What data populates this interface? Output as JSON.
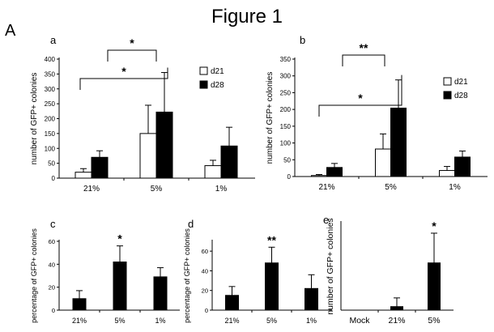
{
  "figure_title": "Figure 1",
  "section_label": "A",
  "colors": {
    "d21": "#ffffff",
    "d28": "#000000",
    "axis": "#000000"
  },
  "chart_data": [
    {
      "panel": "a",
      "type": "bar",
      "categories": [
        "21%",
        "5%",
        "1%"
      ],
      "series": [
        {
          "name": "d21",
          "values": [
            20,
            150,
            42
          ],
          "errors": [
            12,
            95,
            18
          ]
        },
        {
          "name": "d28",
          "values": [
            70,
            222,
            108
          ],
          "errors": [
            22,
            133,
            63
          ]
        }
      ],
      "ylabel": "number of GFP+ colonies",
      "ylim": [
        0,
        400
      ],
      "yticks": [
        0,
        50,
        100,
        150,
        200,
        250,
        300,
        350,
        400
      ],
      "legend": "top-right",
      "significance": [
        {
          "from": "21%",
          "to": "5%",
          "label": "*"
        },
        {
          "from": "21%",
          "to": "5%",
          "label": "*"
        }
      ]
    },
    {
      "panel": "b",
      "type": "bar",
      "categories": [
        "21%",
        "5%",
        "1%"
      ],
      "series": [
        {
          "name": "d21",
          "values": [
            3,
            82,
            18
          ],
          "errors": [
            3,
            45,
            12
          ]
        },
        {
          "name": "d28",
          "values": [
            27,
            204,
            58
          ],
          "errors": [
            12,
            84,
            18
          ]
        }
      ],
      "ylabel": "number of GFP+ colonies",
      "ylim": [
        0,
        350
      ],
      "yticks": [
        0,
        50,
        100,
        150,
        200,
        250,
        300,
        350
      ],
      "legend": "top-right",
      "significance": [
        {
          "from": "21%",
          "to": "5%",
          "label": "*"
        },
        {
          "from": "21%",
          "to": "5%",
          "label": "**"
        }
      ]
    },
    {
      "panel": "c",
      "type": "bar",
      "categories": [
        "21%",
        "5%",
        "1%"
      ],
      "values": [
        10,
        42,
        29
      ],
      "errors": [
        7,
        14,
        8
      ],
      "ylabel": "percentage of GFP+ colonies",
      "ylim": [
        0,
        60
      ],
      "yticks": [
        0,
        20,
        40,
        60
      ],
      "annotations": [
        {
          "category": "5%",
          "label": "*"
        }
      ]
    },
    {
      "panel": "d",
      "type": "bar",
      "categories": [
        "21%",
        "5%",
        "1%"
      ],
      "values": [
        15,
        48,
        22
      ],
      "errors": [
        9,
        16,
        14
      ],
      "ylabel": "percentage of GFP+ colonies",
      "ylim": [
        0,
        70
      ],
      "yticks": [
        0,
        20,
        40,
        60
      ],
      "annotations": [
        {
          "category": "5%",
          "label": "**"
        }
      ]
    },
    {
      "panel": "e",
      "type": "bar",
      "categories": [
        "Mock",
        "21%",
        "5%"
      ],
      "values": [
        0,
        0.2,
        2.7
      ],
      "errors": [
        0,
        0.5,
        1.7
      ],
      "ylabel": "number of GFP+ colonies",
      "ylim": [
        0,
        5
      ],
      "yticks": [],
      "annotations": [
        {
          "category": "5%",
          "label": "*"
        }
      ]
    }
  ]
}
